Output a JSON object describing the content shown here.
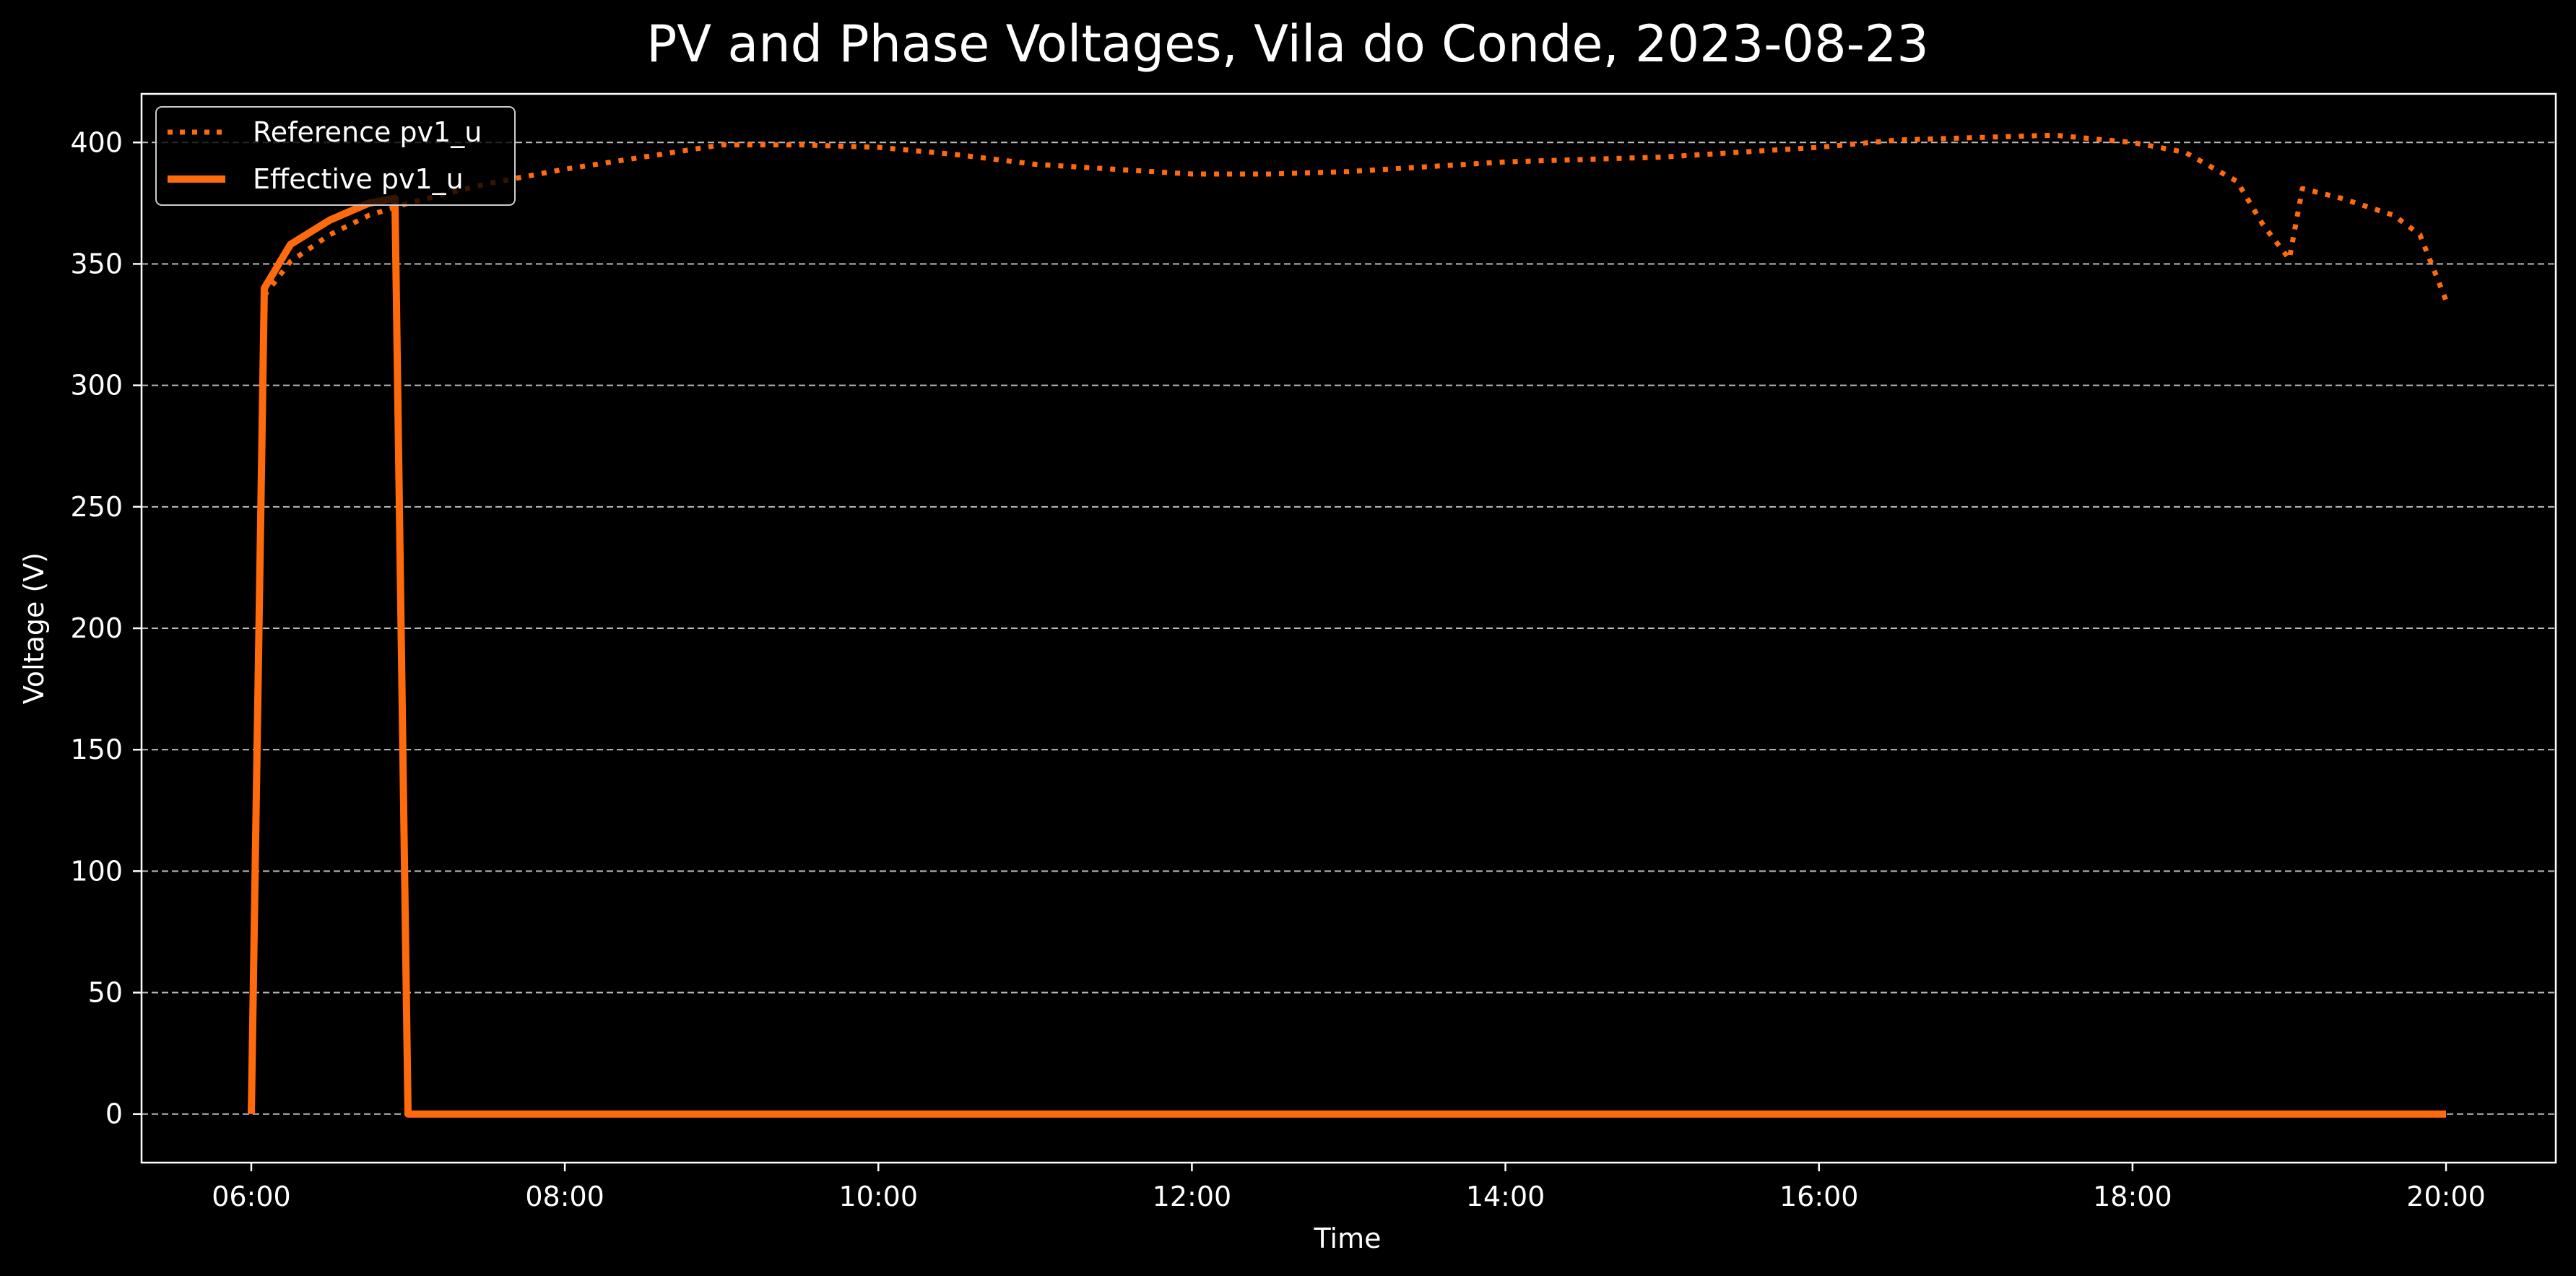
{
  "chart_data": {
    "type": "line",
    "title": "PV and Phase Voltages, Vila do Conde, 2023-08-23",
    "xlabel": "Time",
    "ylabel": "Voltage (V)",
    "xlim": [
      "05:18",
      "20:42"
    ],
    "ylim": [
      -20,
      420
    ],
    "x_ticks": [
      "06:00",
      "08:00",
      "10:00",
      "12:00",
      "14:00",
      "16:00",
      "18:00",
      "20:00"
    ],
    "y_ticks": [
      0,
      50,
      100,
      150,
      200,
      250,
      300,
      350,
      400
    ],
    "grid": "horizontal, dashed",
    "legend_position": "upper-left",
    "colors": {
      "background": "#000000",
      "series": "#ff6a0d",
      "grid": "#bbbbbb",
      "text": "#ffffff"
    },
    "series": [
      {
        "name": "Reference pv1_u",
        "style": "dotted",
        "x": [
          "06:05",
          "06:15",
          "06:30",
          "06:45",
          "07:00",
          "07:15",
          "07:30",
          "07:45",
          "08:00",
          "08:30",
          "09:00",
          "09:30",
          "10:00",
          "10:30",
          "11:00",
          "11:30",
          "12:00",
          "12:30",
          "13:00",
          "13:30",
          "14:00",
          "14:30",
          "15:00",
          "15:30",
          "16:00",
          "16:30",
          "17:00",
          "17:30",
          "18:00",
          "18:20",
          "18:40",
          "18:50",
          "19:00",
          "19:05",
          "19:20",
          "19:40",
          "19:50",
          "20:00"
        ],
        "y": [
          337,
          351,
          362,
          370,
          375,
          379,
          383,
          386,
          389,
          394,
          399,
          399,
          398,
          395,
          391,
          389,
          387,
          387,
          388,
          390,
          392,
          393,
          394,
          396,
          398,
          401,
          402,
          403,
          400,
          396,
          384,
          366,
          352,
          381,
          377,
          370,
          362,
          335
        ]
      },
      {
        "name": "Effective pv1_u",
        "style": "solid",
        "x": [
          "06:00",
          "06:05",
          "06:15",
          "06:30",
          "06:45",
          "06:55",
          "07:00",
          "07:30",
          "08:00",
          "10:00",
          "12:00",
          "14:00",
          "16:00",
          "18:00",
          "20:00"
        ],
        "y": [
          0,
          340,
          358,
          368,
          375,
          377,
          0,
          0,
          0,
          0,
          0,
          0,
          0,
          0,
          0
        ]
      }
    ]
  }
}
